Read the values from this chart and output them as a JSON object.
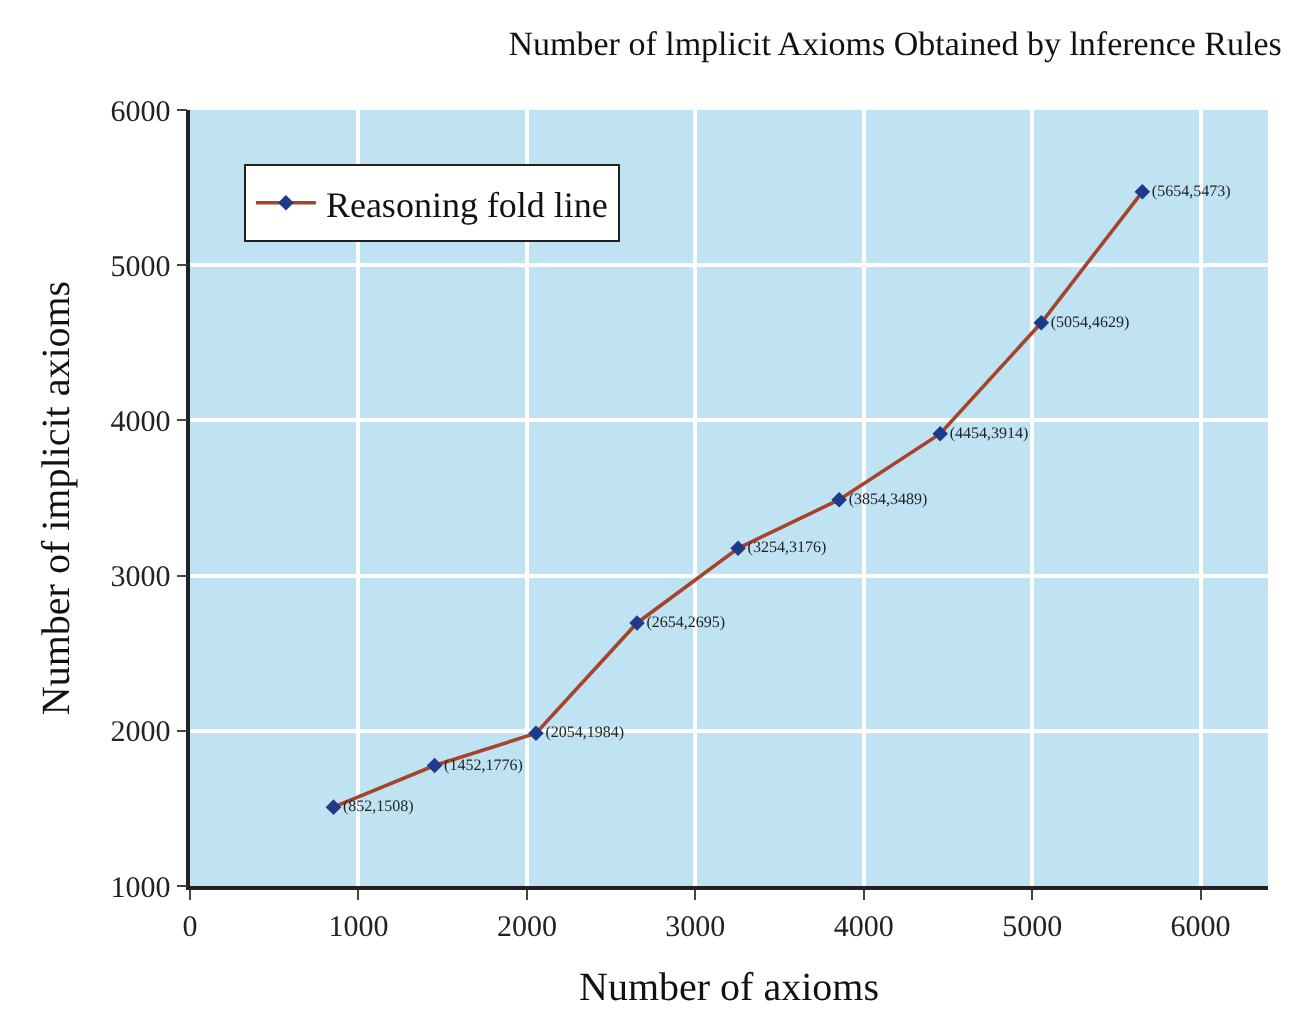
{
  "chart_data": {
    "type": "line",
    "title": "Number of lmplicit Axioms Obtained by lnference Rules",
    "xlabel": "Number of axioms",
    "ylabel": "Number of implicit axioms",
    "x": [
      852,
      1452,
      2054,
      2654,
      3254,
      3854,
      4454,
      5054,
      5654
    ],
    "series": [
      {
        "name": "Reasoning fold line",
        "color": "#a5442a",
        "values": [
          1508,
          1776,
          1984,
          2695,
          3176,
          3489,
          3914,
          4629,
          5473
        ],
        "value_labels": [
          "(852,1508)",
          "(1452,1776)",
          "(2054,1984)",
          "(2654,2695)",
          "(3254,3176)",
          "(3854,3489)",
          "(4454,3914)",
          "(5054,4629)",
          "(5654,5473)"
        ]
      }
    ],
    "xlim": [
      0,
      6400
    ],
    "xticks": [
      0,
      1000,
      2000,
      3000,
      4000,
      5000,
      6000
    ],
    "ylim": [
      1000,
      6000
    ],
    "yticks": [
      1000,
      2000,
      3000,
      4000,
      5000,
      6000
    ],
    "grid": true,
    "legend": "top left",
    "marker": "diamond",
    "line_style": "solid"
  }
}
